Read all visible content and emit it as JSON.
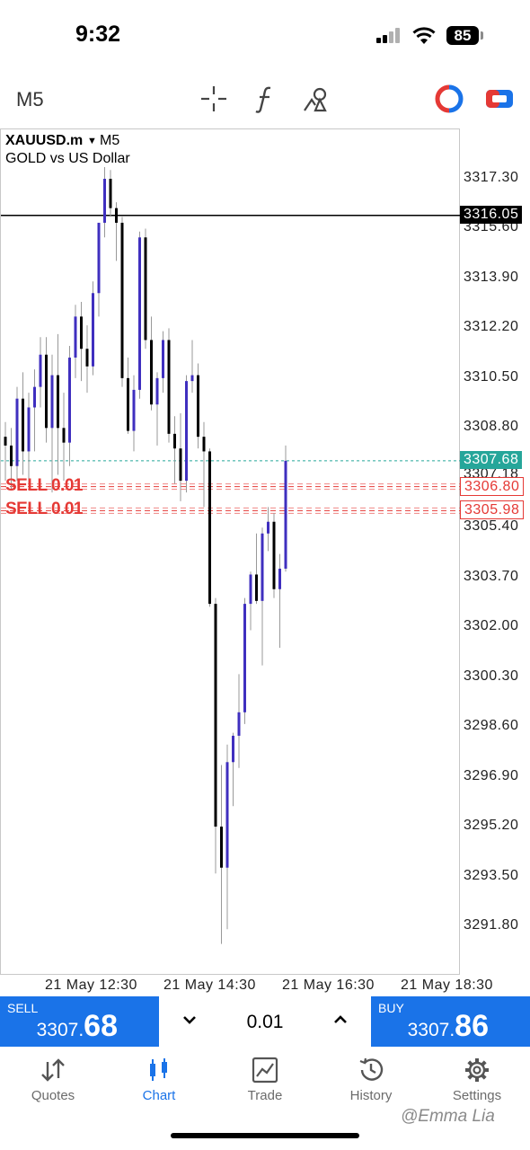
{
  "status_bar": {
    "time": "9:32",
    "battery": "85"
  },
  "toolbar": {
    "timeframe": "M5",
    "icons": [
      "crosshair-icon",
      "indicators-icon",
      "objects-icon",
      "one-click-trading-icon",
      "chart-settings-icon"
    ],
    "colors": {
      "one_click_red": "#e53935",
      "one_click_blue": "#1a73e8"
    }
  },
  "chart": {
    "symbol": "XAUUSD.m",
    "symbol_timeframe": "M5",
    "description": "GOLD vs US Dollar",
    "price_ticks": [
      "3317.30",
      "3315.60",
      "3313.90",
      "3312.20",
      "3310.50",
      "3308.80",
      "3307.18",
      "3305.40",
      "3303.70",
      "3302.00",
      "3300.30",
      "3298.60",
      "3296.90",
      "3295.20",
      "3293.50",
      "3291.80"
    ],
    "time_labels": [
      "21 May 12:30",
      "21 May 14:30",
      "21 May 16:30",
      "21 May 18:30"
    ],
    "hline_price": "3316.05",
    "bid_price": "3307.68",
    "order_prices": [
      "3306.80",
      "3305.98"
    ],
    "order_labels": [
      "SELL 0.01",
      "SELL 0.01"
    ],
    "colors": {
      "bull": "#3f2fbf",
      "bear": "#000000",
      "bid": "#26a69a",
      "order": "#e53935"
    }
  },
  "chart_data": {
    "type": "candlestick",
    "ylim": [
      3290.6,
      3319.2
    ],
    "price_ticks": [
      3317.3,
      3315.6,
      3313.9,
      3312.2,
      3310.5,
      3308.8,
      3307.18,
      3305.4,
      3303.7,
      3302.0,
      3300.3,
      3298.6,
      3296.9,
      3295.2,
      3293.5,
      3291.8
    ],
    "time_labels": [
      "21 May 12:30",
      "21 May 14:30",
      "21 May 16:30",
      "21 May 18:30"
    ],
    "candles": [
      [
        3308.5,
        3309.0,
        3307.0,
        3308.2
      ],
      [
        3308.2,
        3308.8,
        3306.7,
        3307.5
      ],
      [
        3307.5,
        3310.2,
        3307.0,
        3309.8
      ],
      [
        3309.8,
        3310.7,
        3307.2,
        3308.0
      ],
      [
        3308.0,
        3310.0,
        3306.9,
        3309.5
      ],
      [
        3309.5,
        3310.8,
        3308.0,
        3310.2
      ],
      [
        3310.2,
        3311.9,
        3309.5,
        3311.3
      ],
      [
        3311.3,
        3311.9,
        3308.3,
        3308.8
      ],
      [
        3308.8,
        3311.3,
        3306.6,
        3310.6
      ],
      [
        3310.6,
        3312.0,
        3307.2,
        3308.8
      ],
      [
        3308.8,
        3310.0,
        3307.0,
        3308.3
      ],
      [
        3308.3,
        3311.6,
        3307.5,
        3311.2
      ],
      [
        3311.2,
        3313.0,
        3310.5,
        3312.6
      ],
      [
        3312.6,
        3313.1,
        3310.4,
        3311.5
      ],
      [
        3311.5,
        3312.3,
        3310.0,
        3310.9
      ],
      [
        3310.9,
        3313.8,
        3310.6,
        3313.4
      ],
      [
        3313.4,
        3315.8,
        3312.6,
        3315.8
      ],
      [
        3315.8,
        3317.7,
        3315.3,
        3317.3
      ],
      [
        3317.3,
        3317.6,
        3316.0,
        3316.3
      ],
      [
        3316.3,
        3316.5,
        3314.5,
        3315.8
      ],
      [
        3315.8,
        3316.0,
        3310.2,
        3310.5
      ],
      [
        3310.5,
        3311.2,
        3308.6,
        3308.7
      ],
      [
        3308.7,
        3310.6,
        3308.0,
        3310.1
      ],
      [
        3310.1,
        3315.5,
        3309.8,
        3315.3
      ],
      [
        3315.3,
        3315.6,
        3311.5,
        3311.8
      ],
      [
        3311.8,
        3312.6,
        3309.4,
        3309.6
      ],
      [
        3309.6,
        3310.7,
        3308.2,
        3310.5
      ],
      [
        3310.5,
        3312.1,
        3310.0,
        3311.8
      ],
      [
        3311.8,
        3312.2,
        3308.3,
        3308.6
      ],
      [
        3308.6,
        3309.2,
        3306.9,
        3308.1
      ],
      [
        3308.1,
        3309.3,
        3306.3,
        3307.0
      ],
      [
        3307.0,
        3310.6,
        3306.6,
        3310.4
      ],
      [
        3310.4,
        3311.8,
        3310.0,
        3310.6
      ],
      [
        3310.6,
        3311.0,
        3308.1,
        3308.5
      ],
      [
        3308.5,
        3309.0,
        3306.1,
        3308.0
      ],
      [
        3308.0,
        3308.1,
        3302.7,
        3302.8
      ],
      [
        3302.8,
        3303.0,
        3293.6,
        3295.2
      ],
      [
        3295.2,
        3297.3,
        3291.2,
        3293.8
      ],
      [
        3293.8,
        3298.0,
        3291.7,
        3297.4
      ],
      [
        3297.4,
        3298.4,
        3295.9,
        3298.3
      ],
      [
        3298.3,
        3300.4,
        3297.2,
        3299.1
      ],
      [
        3299.1,
        3303.0,
        3298.7,
        3302.8
      ],
      [
        3302.8,
        3303.9,
        3301.9,
        3303.8
      ],
      [
        3303.8,
        3305.2,
        3302.8,
        3302.9
      ],
      [
        3302.9,
        3305.4,
        3300.7,
        3305.2
      ],
      [
        3305.2,
        3306.1,
        3304.6,
        3305.6
      ],
      [
        3305.6,
        3305.9,
        3303.0,
        3303.3
      ],
      [
        3303.3,
        3304.5,
        3301.3,
        3304.0
      ],
      [
        3304.0,
        3308.2,
        3303.9,
        3307.68
      ]
    ],
    "lines": {
      "hline": 3316.05,
      "bid": 3307.68,
      "sell_orders": [
        3306.8,
        3305.98
      ]
    }
  },
  "trade_bar": {
    "sell_label": "SELL",
    "sell_small": "3307.",
    "sell_big": "68",
    "buy_label": "BUY",
    "buy_small": "3307.",
    "buy_big": "86",
    "lot": "0.01",
    "down": "˅",
    "up": "˄"
  },
  "bottom_nav": {
    "items": [
      {
        "label": "Quotes",
        "icon": "quotes-icon"
      },
      {
        "label": "Chart",
        "icon": "chart-icon"
      },
      {
        "label": "Trade",
        "icon": "trade-icon"
      },
      {
        "label": "History",
        "icon": "history-icon"
      },
      {
        "label": "Settings",
        "icon": "settings-icon"
      }
    ],
    "active": "Chart"
  },
  "watermark": "@Emma Lia"
}
